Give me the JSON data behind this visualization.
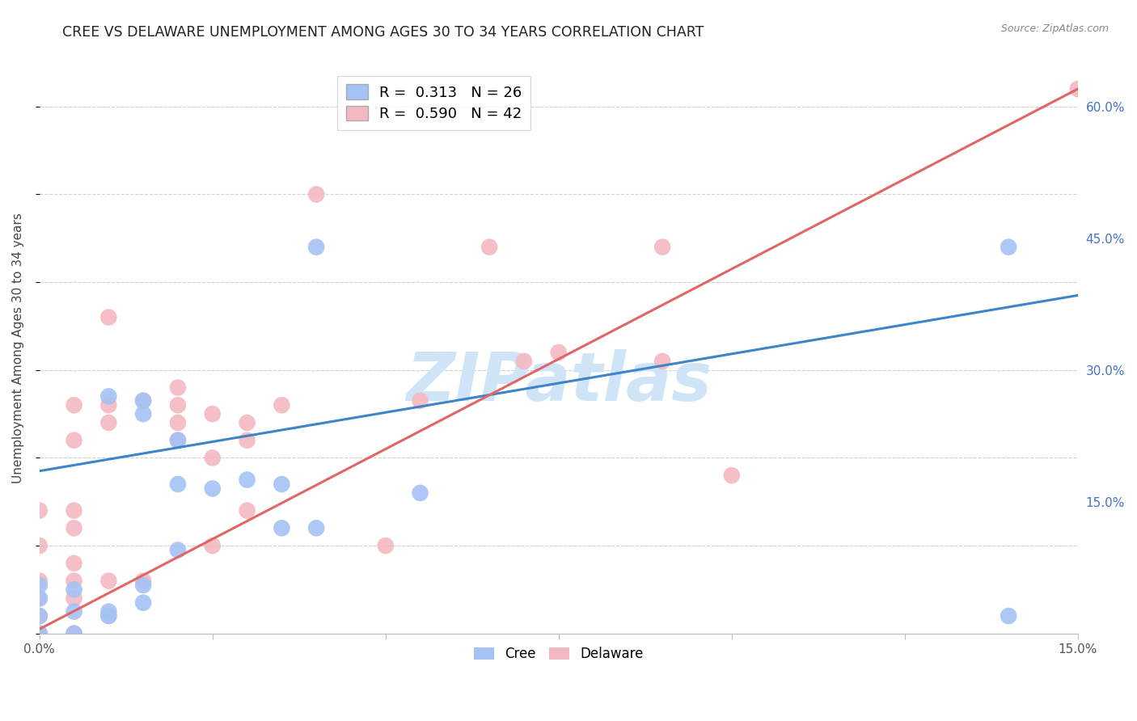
{
  "title": "CREE VS DELAWARE UNEMPLOYMENT AMONG AGES 30 TO 34 YEARS CORRELATION CHART",
  "source": "Source: ZipAtlas.com",
  "ylabel": "Unemployment Among Ages 30 to 34 years",
  "xlim": [
    0.0,
    0.15
  ],
  "ylim": [
    0.0,
    0.65
  ],
  "xticks": [
    0.0,
    0.025,
    0.05,
    0.075,
    0.1,
    0.125,
    0.15
  ],
  "xticklabels": [
    "0.0%",
    "",
    "",
    "",
    "",
    "",
    "15.0%"
  ],
  "yticks": [
    0.0,
    0.15,
    0.3,
    0.45,
    0.6
  ],
  "yticklabels_right": [
    "",
    "15.0%",
    "30.0%",
    "45.0%",
    "60.0%"
  ],
  "cree_R": 0.313,
  "cree_N": 26,
  "delaware_R": 0.59,
  "delaware_N": 42,
  "cree_color": "#a4c2f4",
  "delaware_color": "#f4b8c1",
  "cree_line_color": "#3d85c8",
  "delaware_line_color": "#e06666",
  "watermark_text": "ZIPatlas",
  "watermark_color": "#d0e4f7",
  "cree_line_x0": 0.0,
  "cree_line_y0": 0.185,
  "cree_line_x1": 0.15,
  "cree_line_y1": 0.385,
  "del_line_x0": 0.0,
  "del_line_y0": 0.005,
  "del_line_x1": 0.15,
  "del_line_y1": 0.62,
  "cree_x": [
    0.0,
    0.0,
    0.0,
    0.0,
    0.005,
    0.005,
    0.005,
    0.01,
    0.01,
    0.01,
    0.015,
    0.015,
    0.015,
    0.015,
    0.02,
    0.02,
    0.02,
    0.025,
    0.03,
    0.035,
    0.035,
    0.04,
    0.04,
    0.055,
    0.14,
    0.14
  ],
  "cree_y": [
    0.0,
    0.02,
    0.04,
    0.055,
    0.0,
    0.025,
    0.05,
    0.02,
    0.025,
    0.27,
    0.035,
    0.055,
    0.25,
    0.265,
    0.095,
    0.17,
    0.22,
    0.165,
    0.175,
    0.12,
    0.17,
    0.12,
    0.44,
    0.16,
    0.02,
    0.44
  ],
  "delaware_x": [
    0.0,
    0.0,
    0.0,
    0.0,
    0.0,
    0.0,
    0.005,
    0.005,
    0.005,
    0.005,
    0.005,
    0.005,
    0.005,
    0.005,
    0.01,
    0.01,
    0.01,
    0.01,
    0.01,
    0.015,
    0.015,
    0.02,
    0.02,
    0.02,
    0.02,
    0.025,
    0.025,
    0.025,
    0.03,
    0.03,
    0.03,
    0.035,
    0.04,
    0.05,
    0.055,
    0.065,
    0.07,
    0.075,
    0.09,
    0.09,
    0.1,
    0.15
  ],
  "delaware_y": [
    0.0,
    0.02,
    0.04,
    0.06,
    0.1,
    0.14,
    0.0,
    0.04,
    0.06,
    0.08,
    0.12,
    0.14,
    0.22,
    0.26,
    0.02,
    0.06,
    0.24,
    0.26,
    0.36,
    0.06,
    0.265,
    0.22,
    0.24,
    0.26,
    0.28,
    0.1,
    0.2,
    0.25,
    0.14,
    0.22,
    0.24,
    0.26,
    0.5,
    0.1,
    0.265,
    0.44,
    0.31,
    0.32,
    0.31,
    0.44,
    0.18,
    0.62
  ],
  "background_color": "#ffffff",
  "grid_color": "#d0d0d0",
  "title_fontsize": 12.5,
  "label_fontsize": 11,
  "tick_fontsize": 11,
  "legend_fontsize": 13
}
